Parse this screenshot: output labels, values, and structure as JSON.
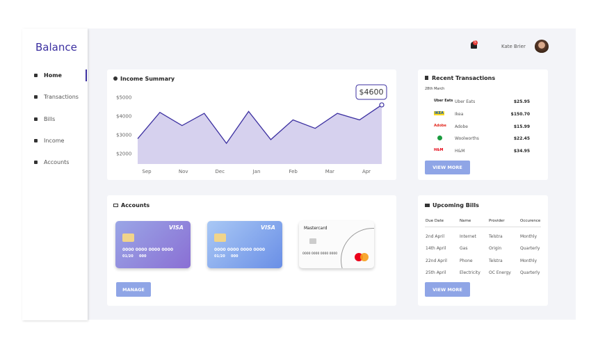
{
  "sidebar": {
    "brand": "Balance",
    "nav": [
      "Home",
      "Transactions",
      "Bills",
      "Income",
      "Accounts"
    ]
  },
  "header": {
    "notifications": "5",
    "user": "Kate Brier"
  },
  "income_summary": {
    "title": "Income Summary",
    "values": [
      2800,
      4200,
      3500,
      4150,
      2550,
      4250,
      2750,
      3800,
      3350,
      4150,
      3800,
      4600
    ],
    "ylim": [
      1450,
      5550
    ],
    "yticks": [
      {
        "value": 2000,
        "label": "$2000"
      },
      {
        "value": 3000,
        "label": "$3000"
      },
      {
        "value": 4000,
        "label": "$4000"
      },
      {
        "value": 5000,
        "label": "$5000"
      }
    ],
    "x_labels": [
      "Sep",
      "Nov",
      "Dec",
      "Jan",
      "Feb",
      "Mar",
      "Apr"
    ],
    "callout": "$4600",
    "color": "#3b2fa0"
  },
  "recent_transactions": {
    "title": "Recent Transactions",
    "date": "28th March",
    "rows": [
      {
        "logo": "Uber Eats",
        "name": "Uber Eats",
        "amount": "$25.95"
      },
      {
        "logo": "IKEA",
        "name": "Ikea",
        "amount": "$150.70"
      },
      {
        "logo": "Adobe",
        "name": "Adobe",
        "amount": "$15.99"
      },
      {
        "name": "Woolworths",
        "amount": "$22.45"
      },
      {
        "logo": "H&M",
        "name": "H&M",
        "amount": "$34.95"
      }
    ],
    "button": "VIEW MORE"
  },
  "accounts": {
    "title": "Accounts",
    "cards": [
      {
        "brand": "VISA",
        "number": "0000 0000 0000 0000",
        "expiry": "01/20",
        "cvv": "000"
      },
      {
        "brand": "VISA",
        "number": "0000 0000 0000 0000",
        "expiry": "01/20",
        "cvv": "000"
      },
      {
        "brand": "Mastercard",
        "number": "0000 0000 0000 0000"
      }
    ],
    "button": "MANAGE"
  },
  "upcoming_bills": {
    "title": "Upcoming Bills",
    "columns": [
      "Due Date",
      "Name",
      "Provider",
      "Occurence"
    ],
    "rows": [
      [
        "2nd April",
        "Internet",
        "Telstra",
        "Monthly"
      ],
      [
        "14th April",
        "Gas",
        "Origin",
        "Quarterly"
      ],
      [
        "22nd April",
        "Phone",
        "Telstra",
        "Monthly"
      ],
      [
        "25th April",
        "Electricity",
        "OC Energy",
        "Quarterly"
      ]
    ],
    "button": "VIEW MORE"
  }
}
